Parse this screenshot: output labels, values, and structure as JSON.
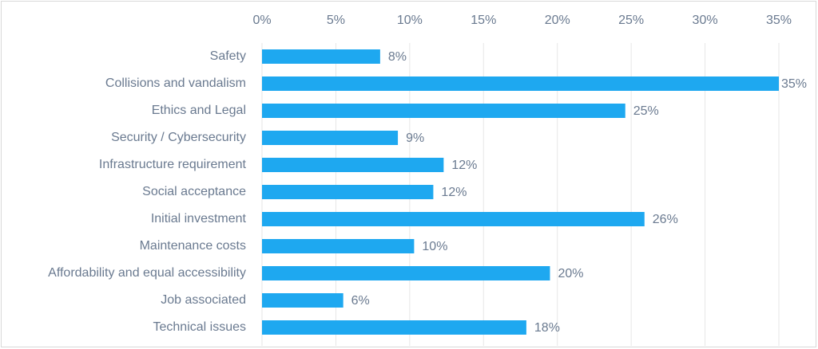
{
  "chart_data": {
    "type": "bar",
    "orientation": "horizontal",
    "categories": [
      "Safety",
      "Collisions and vandalism",
      "Ethics and Legal",
      "Security / Cybersecurity",
      "Infrastructure requirement",
      "Social acceptance",
      "Initial investment",
      "Maintenance costs",
      "Affordability and equal accessibility",
      "Job associated",
      "Technical issues"
    ],
    "values": [
      8,
      35,
      24.6,
      9.2,
      12.3,
      11.6,
      25.9,
      10.3,
      19.5,
      5.5,
      17.9
    ],
    "value_labels": [
      "8%",
      "35%",
      "25%",
      "9%",
      "12%",
      "12%",
      "26%",
      "10%",
      "20%",
      "6%",
      "18%"
    ],
    "color": "#1ea8f0",
    "xlim": [
      0,
      35
    ],
    "xticks": [
      {
        "value": 0,
        "label": "0%"
      },
      {
        "value": 5,
        "label": "5%"
      },
      {
        "value": 10,
        "label": "10%"
      },
      {
        "value": 15,
        "label": "15%"
      },
      {
        "value": 20,
        "label": "20%"
      },
      {
        "value": 25,
        "label": "25%"
      },
      {
        "value": 30,
        "label": "30%"
      },
      {
        "value": 35,
        "label": "35%"
      }
    ],
    "grid": true
  }
}
